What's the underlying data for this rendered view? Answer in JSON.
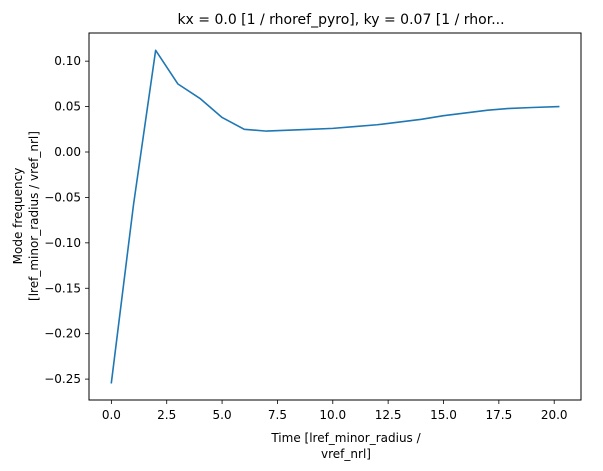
{
  "chart_data": {
    "type": "line",
    "title": "kx = 0.0 [1 / rhoref_pyro], ky = 0.07 [1 / rhor...",
    "xlabel": [
      "Time [lref_minor_radius /",
      "vref_nrl]"
    ],
    "ylabel": [
      "Mode frequency",
      "[lref_minor_radius / vref_nrl]"
    ],
    "xlim": [
      -1.01,
      21.21
    ],
    "ylim": [
      -0.273,
      0.131
    ],
    "xticks": [
      0.0,
      2.5,
      5.0,
      7.5,
      10.0,
      12.5,
      15.0,
      17.5,
      20.0
    ],
    "xtick_labels": [
      "0.0",
      "2.5",
      "5.0",
      "7.5",
      "10.0",
      "12.5",
      "15.0",
      "17.5",
      "20.0"
    ],
    "yticks": [
      0.1,
      0.05,
      0.0,
      -0.05,
      -0.1,
      -0.15,
      -0.2,
      -0.25
    ],
    "ytick_labels": [
      "0.10",
      "0.05",
      "0.00",
      "−0.05",
      "−0.10",
      "−0.15",
      "−0.20",
      "−0.25"
    ],
    "grid": false,
    "series": [
      {
        "color": "#1f77b4",
        "x": [
          0.0,
          1.0,
          2.0,
          3.0,
          4.0,
          5.0,
          6.0,
          7.0,
          8.0,
          9.0,
          10.0,
          11.0,
          12.0,
          13.0,
          14.0,
          15.0,
          16.0,
          17.0,
          18.0,
          19.0,
          20.2
        ],
        "y": [
          -0.254,
          -0.058,
          0.112,
          0.075,
          0.059,
          0.038,
          0.025,
          0.023,
          0.024,
          0.025,
          0.026,
          0.028,
          0.03,
          0.033,
          0.036,
          0.04,
          0.043,
          0.046,
          0.048,
          0.049,
          0.05
        ]
      }
    ]
  }
}
